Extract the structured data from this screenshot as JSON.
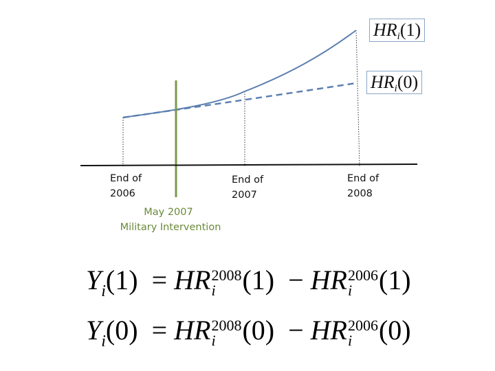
{
  "axis_labels": {
    "end_2006": "End of\n2006",
    "end_2007": "End of\n2007",
    "end_2008": "End of\n2008"
  },
  "intervention": {
    "date": "May 2007",
    "label": "Military Intervention"
  },
  "legend": {
    "treated": {
      "var": "HR",
      "subscript": "i",
      "arg": "(1)"
    },
    "control": {
      "var": "HR",
      "subscript": "i",
      "arg": "(0)"
    }
  },
  "equations": [
    {
      "lhs_var": "Y",
      "lhs_sub": "i",
      "lhs_arg": "(1)",
      "equals": "=",
      "term1_var": "HR",
      "term1_sup": "2008",
      "term1_sub": "i",
      "term1_arg": "(1)",
      "minus": "−",
      "term2_var": "HR",
      "term2_sup": "2006",
      "term2_sub": "i",
      "term2_arg": "(1)"
    },
    {
      "lhs_var": "Y",
      "lhs_sub": "i",
      "lhs_arg": "(0)",
      "equals": "=",
      "term1_var": "HR",
      "term1_sup": "2008",
      "term1_sub": "i",
      "term1_arg": "(0)",
      "minus": "−",
      "term2_var": "HR",
      "term2_sup": "2006",
      "term2_sub": "i",
      "term2_arg": "(0)"
    }
  ],
  "colors": {
    "curve": "#5b7fb0",
    "intervention_line": "#7a9a4a",
    "intervention_text": "#6a8a3a",
    "axis": "#111111",
    "legend_border": "#8aa6c8"
  }
}
